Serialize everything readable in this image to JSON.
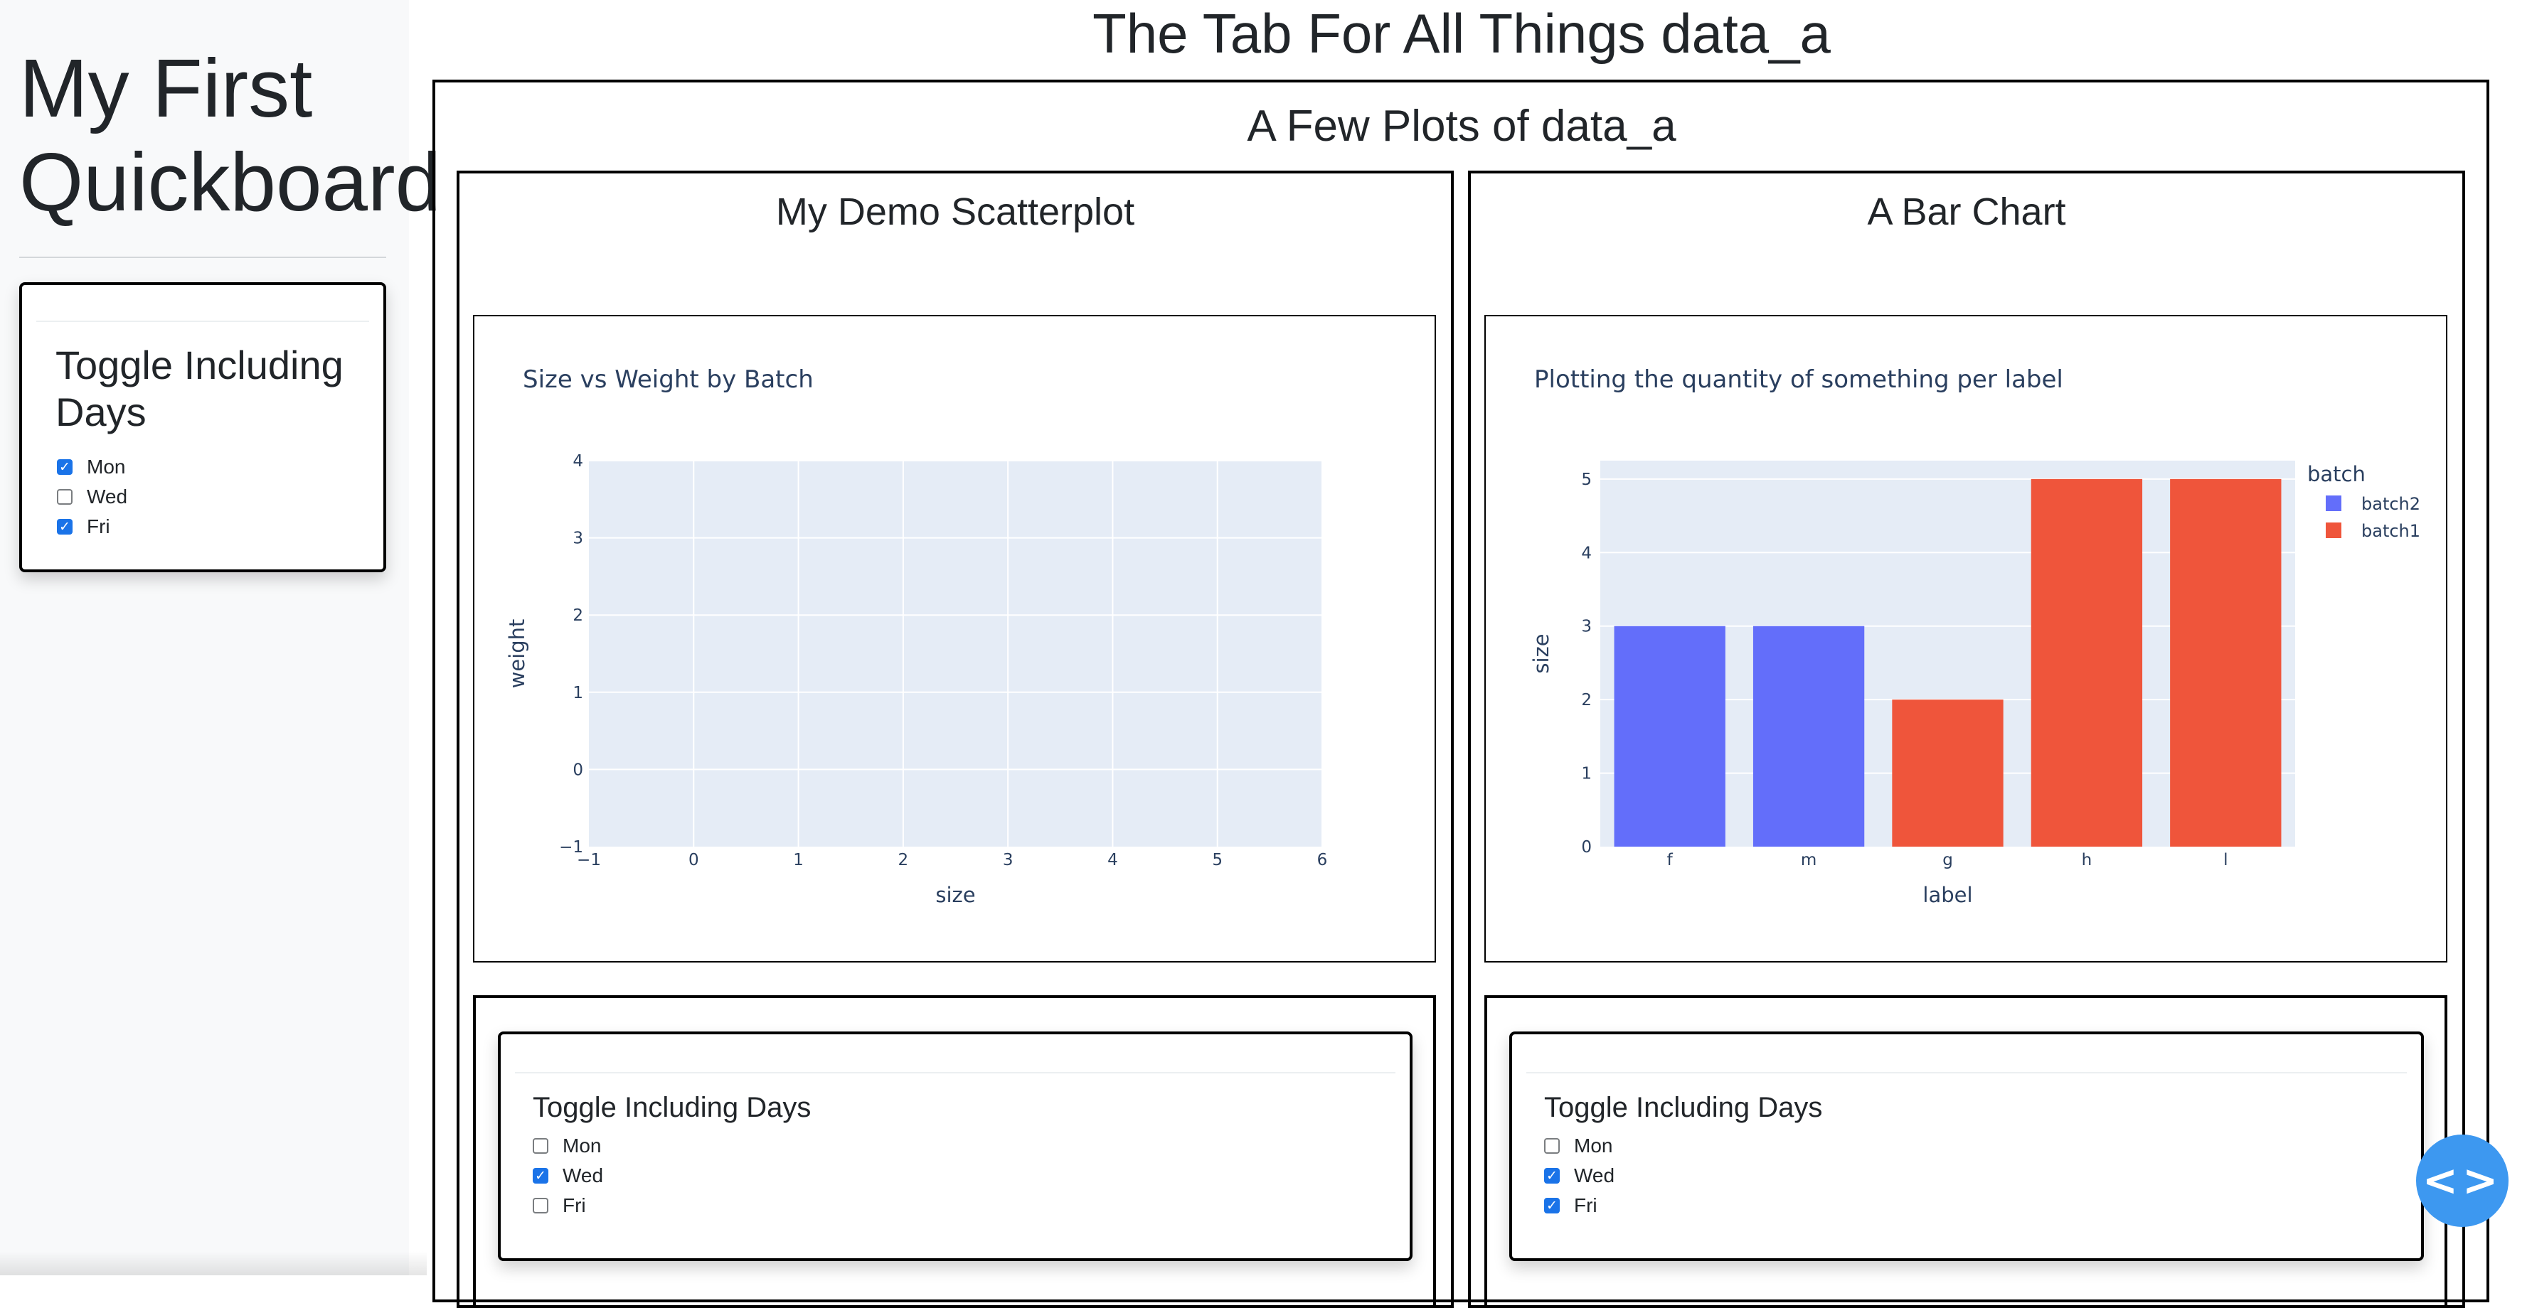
{
  "sidebar": {
    "title": "My First Quickboard",
    "toggle": {
      "title": "Toggle Including Days",
      "options": [
        {
          "label": "Mon",
          "checked": true
        },
        {
          "label": "Wed",
          "checked": false
        },
        {
          "label": "Fri",
          "checked": true
        }
      ]
    }
  },
  "main": {
    "tab_title": "The Tab For All Things data_a",
    "section_title": "A Few Plots of data_a",
    "left_panel": {
      "title": "My Demo Scatterplot",
      "toggle": {
        "title": "Toggle Including Days",
        "options": [
          {
            "label": "Mon",
            "checked": false
          },
          {
            "label": "Wed",
            "checked": true
          },
          {
            "label": "Fri",
            "checked": false
          }
        ]
      }
    },
    "right_panel": {
      "title": "A Bar Chart",
      "toggle": {
        "title": "Toggle Including Days",
        "options": [
          {
            "label": "Mon",
            "checked": false
          },
          {
            "label": "Wed",
            "checked": true
          },
          {
            "label": "Fri",
            "checked": true
          }
        ]
      }
    }
  },
  "fab": {
    "icon": "code-icon"
  },
  "colors": {
    "accent": "#1a73e8",
    "plot_bg": "#e5ecf6",
    "batch2": "#636efa",
    "batch1": "#ef553b",
    "fab": "#3d98f0"
  },
  "chart_data": [
    {
      "type": "scatter",
      "title": "Size vs Weight by Batch",
      "xlabel": "size",
      "ylabel": "weight",
      "xlim": [
        -1,
        6
      ],
      "ylim": [
        -1,
        4
      ],
      "xticks": [
        "−1",
        "0",
        "1",
        "2",
        "3",
        "4",
        "5",
        "6"
      ],
      "yticks": [
        "−1",
        "0",
        "1",
        "2",
        "3",
        "4"
      ],
      "grid": true,
      "series": []
    },
    {
      "type": "bar",
      "title": "Plotting the quantity of something per label",
      "xlabel": "label",
      "ylabel": "size",
      "categories": [
        "f",
        "m",
        "g",
        "h",
        "l"
      ],
      "values": [
        3,
        3,
        2,
        5,
        5
      ],
      "bar_series": [
        "batch2",
        "batch2",
        "batch1",
        "batch1",
        "batch1"
      ],
      "ylim": [
        0,
        5.25
      ],
      "yticks": [
        "0",
        "1",
        "2",
        "3",
        "4",
        "5"
      ],
      "legend_title": "batch",
      "legend": [
        {
          "name": "batch2",
          "color": "#636efa"
        },
        {
          "name": "batch1",
          "color": "#ef553b"
        }
      ],
      "legend_position": "top-right",
      "grid": true
    }
  ]
}
